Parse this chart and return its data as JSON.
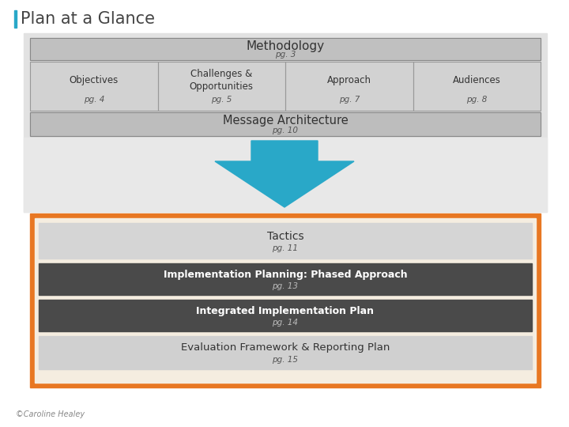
{
  "title": "Plan at a Glance",
  "title_color": "#444444",
  "title_accent_color": "#29A8C8",
  "background_color": "#ffffff",
  "outer_bg_color": "#e2e2e2",
  "methodology_text": "Methodology",
  "methodology_pg": "pg. 3",
  "methodology_bg": "#c0c0c0",
  "sub_boxes": [
    {
      "label": "Objectives",
      "pg": "pg. 4"
    },
    {
      "label": "Challenges &\nOpportunities",
      "pg": "pg. 5"
    },
    {
      "label": "Approach",
      "pg": "pg. 7"
    },
    {
      "label": "Audiences",
      "pg": "pg. 8"
    }
  ],
  "sub_box_bg": "#d2d2d2",
  "sub_box_border": "#999999",
  "message_text": "Message Architecture",
  "message_pg": "pg. 10",
  "message_bg": "#bdbdbd",
  "arrow_color": "#29A8C8",
  "arrow_area_bg": "#e8e8e8",
  "orange_border_color": "#E87722",
  "orange_inner_bg": "#f5ede0",
  "tactics_text": "Tactics",
  "tactics_pg": "pg. 11",
  "tactics_bg": "#d5d5d5",
  "dark_boxes": [
    {
      "label": "Implementation Planning: Phased Approach",
      "pg": "pg. 13",
      "bg": "#4a4a4a"
    },
    {
      "label": "Integrated Implementation Plan",
      "pg": "pg. 14",
      "bg": "#4a4a4a"
    }
  ],
  "eval_text": "Evaluation Framework & Reporting Plan",
  "eval_pg": "pg. 15",
  "eval_bg": "#d0d0d0",
  "footer_text": "©Caroline Healey",
  "footer_color": "#888888"
}
